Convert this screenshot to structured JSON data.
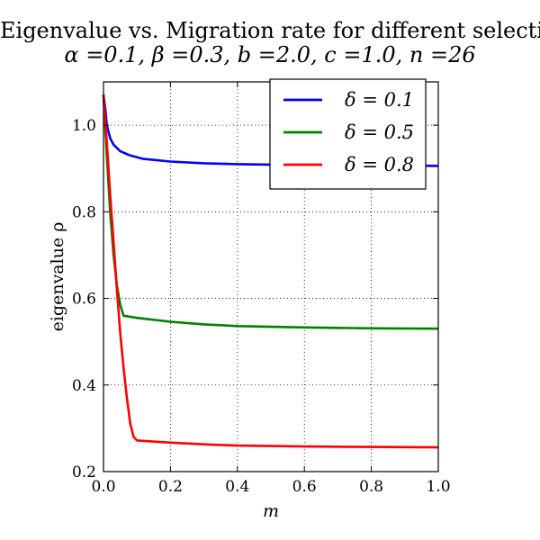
{
  "chart_data": {
    "type": "line",
    "title": "Eigenvalue vs. Migration rate for different selection strength",
    "subtitle": "α =0.1, β =0.3, b =2.0, c =1.0, n =26",
    "xlabel": "m",
    "ylabel": "eigenvalue ρ",
    "xlim": [
      0.0,
      1.0
    ],
    "ylim": [
      0.2,
      1.1
    ],
    "xticks": [
      "0.0",
      "0.2",
      "0.4",
      "0.6",
      "0.8",
      "1.0"
    ],
    "yticks": [
      "0.2",
      "0.4",
      "0.6",
      "0.8",
      "1.0"
    ],
    "grid": true,
    "legend_position": "top-right",
    "series": [
      {
        "name": "δ = 0.1",
        "color": "#0000ff",
        "x": [
          0.0,
          0.005,
          0.01,
          0.02,
          0.03,
          0.05,
          0.08,
          0.12,
          0.2,
          0.3,
          0.4,
          0.6,
          0.8,
          1.0
        ],
        "y": [
          1.07,
          1.04,
          1.0,
          0.97,
          0.955,
          0.94,
          0.93,
          0.922,
          0.916,
          0.912,
          0.91,
          0.908,
          0.907,
          0.906
        ]
      },
      {
        "name": "δ = 0.5",
        "color": "#008000",
        "x": [
          0.0,
          0.01,
          0.02,
          0.03,
          0.04,
          0.05,
          0.06,
          0.1,
          0.2,
          0.3,
          0.4,
          0.6,
          0.8,
          1.0
        ],
        "y": [
          1.07,
          0.93,
          0.8,
          0.7,
          0.63,
          0.585,
          0.56,
          0.555,
          0.546,
          0.54,
          0.536,
          0.533,
          0.531,
          0.53
        ]
      },
      {
        "name": "δ = 0.8",
        "color": "#ff0000",
        "x": [
          0.0,
          0.01,
          0.02,
          0.03,
          0.04,
          0.05,
          0.06,
          0.07,
          0.08,
          0.09,
          0.1,
          0.2,
          0.3,
          0.4,
          0.6,
          0.8,
          1.0
        ],
        "y": [
          1.07,
          0.96,
          0.84,
          0.73,
          0.62,
          0.52,
          0.44,
          0.37,
          0.31,
          0.28,
          0.272,
          0.267,
          0.263,
          0.26,
          0.258,
          0.257,
          0.256
        ]
      }
    ]
  }
}
